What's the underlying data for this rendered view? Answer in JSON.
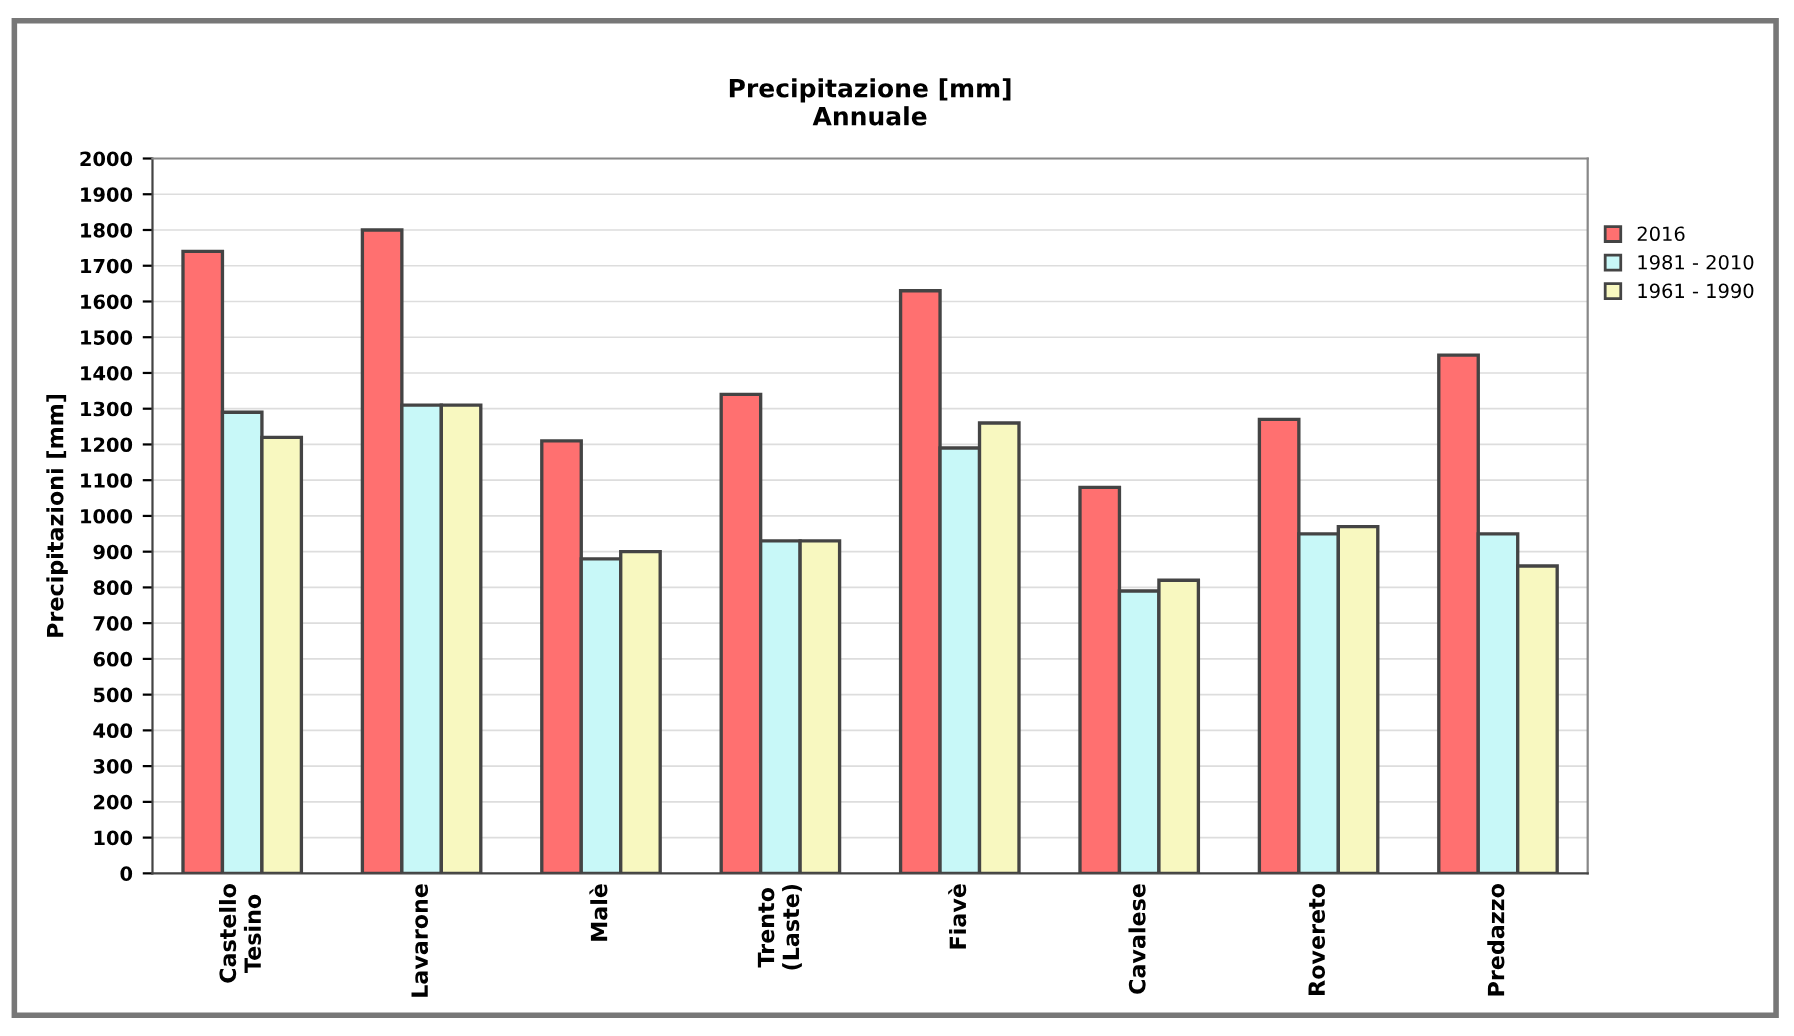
{
  "chart_data": {
    "type": "bar",
    "title": "Precipitazione [mm]\nAnnuale",
    "ylabel": "Precipitazioni [mm]",
    "categories": [
      "Castello\nTesino",
      "Lavarone",
      "Malè",
      "Trento\n(Laste)",
      "Fiavè",
      "Cavalese",
      "Rovereto",
      "Predazzo"
    ],
    "series": [
      {
        "name": "2016",
        "color": "#ff7070",
        "values": [
          1740,
          1800,
          1210,
          1340,
          1630,
          1080,
          1270,
          1450
        ]
      },
      {
        "name": "1981 - 2010",
        "color": "#c8f8f8",
        "values": [
          1290,
          1310,
          880,
          930,
          1190,
          790,
          950,
          950
        ]
      },
      {
        "name": "1961 - 1990",
        "color": "#f8f8c0",
        "values": [
          1220,
          1310,
          900,
          930,
          1260,
          820,
          970,
          860
        ]
      }
    ],
    "ylim": [
      0,
      2000
    ],
    "yticks": [
      0,
      100,
      200,
      300,
      400,
      500,
      600,
      700,
      800,
      900,
      1000,
      1100,
      1200,
      1300,
      1400,
      1500,
      1600,
      1700,
      1800,
      1900,
      2000
    ],
    "grid": "y",
    "legend": "top right"
  }
}
